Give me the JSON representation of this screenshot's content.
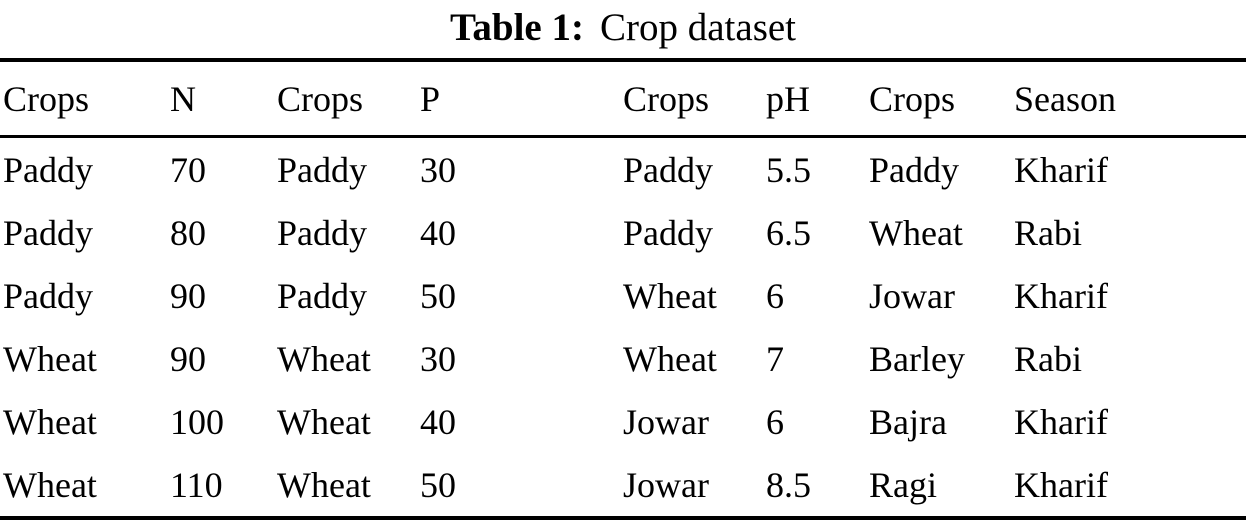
{
  "caption": {
    "label": "Table 1:",
    "text": "Crop dataset"
  },
  "table": {
    "headers": [
      "Crops",
      "N",
      "Crops",
      "P",
      "Crops",
      "pH",
      "Crops",
      "Season"
    ],
    "rows": [
      [
        "Paddy",
        "70",
        "Paddy",
        "30",
        "Paddy",
        "5.5",
        "Paddy",
        "Kharif"
      ],
      [
        "Paddy",
        "80",
        "Paddy",
        "40",
        "Paddy",
        "6.5",
        "Wheat",
        "Rabi"
      ],
      [
        "Paddy",
        "90",
        "Paddy",
        "50",
        "Wheat",
        "6",
        "Jowar",
        "Kharif"
      ],
      [
        "Wheat",
        "90",
        "Wheat",
        "30",
        "Wheat",
        "7",
        "Barley",
        "Rabi"
      ],
      [
        "Wheat",
        "100",
        "Wheat",
        "40",
        "Jowar",
        "6",
        "Bajra",
        "Kharif"
      ],
      [
        "Wheat",
        "110",
        "Wheat",
        "50",
        "Jowar",
        "8.5",
        "Ragi",
        "Kharif"
      ]
    ]
  },
  "colors": {
    "text": "#000000",
    "rule": "#000000",
    "background": "#ffffff"
  }
}
